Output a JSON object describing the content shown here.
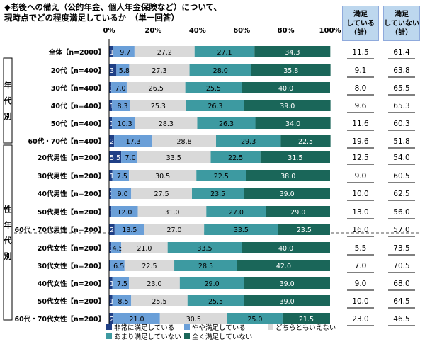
{
  "title": {
    "line1": "◆老後への備え（公的年金、個人年金保険など）について、",
    "line2": "現時点でどの程度満足しているか　（単一回答）"
  },
  "summary_headers": {
    "satisfied": [
      "満足",
      "している",
      "（計）"
    ],
    "unsatisfied": [
      "満足",
      "していない",
      "（計）"
    ]
  },
  "group_labels": {
    "age": "年代別",
    "gender_age": "性年代別"
  },
  "colors": {
    "very_satisfied": "#1f3f86",
    "somewhat_satisfied": "#6a9fd8",
    "neutral": "#d9d9d9",
    "somewhat_unsatisfied": "#3d9aa1",
    "very_unsatisfied": "#1a6659",
    "header_bg": "#bdd7ee"
  },
  "chart_data": {
    "type": "bar",
    "orientation": "horizontal",
    "stacked": "percent",
    "axis_ticks": [
      "0%",
      "20%",
      "40%",
      "60%",
      "80%",
      "100%"
    ],
    "xlim": [
      0,
      100
    ],
    "legend_position": "bottom",
    "series": [
      {
        "name": "非常に満足している",
        "values": [
          1.8,
          3.3,
          1.0,
          1.3,
          1.3,
          2.3,
          5.5,
          1.5,
          1.0,
          1.0,
          2.5,
          1.0,
          0.5,
          1.5,
          1.5,
          2.0
        ]
      },
      {
        "name": "やや満足している",
        "values": [
          9.7,
          5.8,
          7.0,
          8.3,
          10.3,
          17.3,
          7.0,
          7.5,
          9.0,
          12.0,
          13.5,
          4.5,
          6.5,
          7.5,
          8.5,
          21.0
        ]
      },
      {
        "name": "どちらともいえない",
        "values": [
          27.2,
          27.3,
          26.5,
          25.3,
          28.3,
          28.8,
          33.5,
          30.5,
          27.5,
          31.0,
          27.0,
          21.0,
          22.5,
          23.0,
          25.5,
          30.5
        ]
      },
      {
        "name": "あまり満足していない",
        "values": [
          27.1,
          28.0,
          25.5,
          26.3,
          26.3,
          29.3,
          22.5,
          22.5,
          23.5,
          27.0,
          33.5,
          33.5,
          28.5,
          29.0,
          25.5,
          25.0
        ]
      },
      {
        "name": "全く満足していない",
        "values": [
          34.3,
          35.8,
          40.0,
          39.0,
          34.0,
          22.5,
          31.5,
          38.0,
          39.0,
          29.0,
          23.5,
          40.0,
          42.0,
          39.0,
          39.0,
          21.5
        ]
      }
    ],
    "categories": [
      "全体【n=2000】",
      "20代【n=400】",
      "30代【n=400】",
      "40代【n=400】",
      "50代【n=400】",
      "60代・70代【n=400】",
      "20代男性【n=200】",
      "30代男性【n=200】",
      "40代男性【n=200】",
      "50代男性【n=200】",
      "60代・70代男性【n=200】",
      "20代女性【n=200】",
      "30代女性【n=200】",
      "40代女性【n=200】",
      "50代女性【n=200】",
      "60代・70代女性【n=200】"
    ],
    "satisfied_total": [
      "11.5",
      "9.1",
      "8.0",
      "9.6",
      "11.6",
      "19.6",
      "12.5",
      "9.0",
      "10.0",
      "13.0",
      "16.0",
      "5.5",
      "7.0",
      "9.0",
      "10.0",
      "23.0"
    ],
    "unsatisfied_total": [
      "61.4",
      "63.8",
      "65.5",
      "65.3",
      "60.3",
      "51.8",
      "54.0",
      "60.5",
      "62.5",
      "56.0",
      "57.0",
      "73.5",
      "70.5",
      "68.0",
      "64.5",
      "46.5"
    ],
    "value_labels": [
      [
        "1.8",
        "9.7",
        "27.2",
        "27.1",
        "34.3"
      ],
      [
        "3.3",
        "5.8",
        "27.3",
        "28.0",
        "35.8"
      ],
      [
        "1.0",
        "7.0",
        "26.5",
        "25.5",
        "40.0"
      ],
      [
        "1.3",
        "8.3",
        "25.3",
        "26.3",
        "39.0"
      ],
      [
        "1.3",
        "10.3",
        "28.3",
        "26.3",
        "34.0"
      ],
      [
        "2.3",
        "17.3",
        "28.8",
        "29.3",
        "22.5"
      ],
      [
        "5.5",
        "7.0",
        "33.5",
        "22.5",
        "31.5"
      ],
      [
        "1.5",
        "7.5",
        "30.5",
        "22.5",
        "38.0"
      ],
      [
        "1.0",
        "9.0",
        "27.5",
        "23.5",
        "39.0"
      ],
      [
        "1.0",
        "12.0",
        "31.0",
        "27.0",
        "29.0"
      ],
      [
        "2.5",
        "13.5",
        "27.0",
        "33.5",
        "23.5"
      ],
      [
        "1.0",
        "4.5",
        "21.0",
        "33.5",
        "40.0"
      ],
      [
        "0.5",
        "6.5",
        "22.5",
        "28.5",
        "42.0"
      ],
      [
        "1.5",
        "7.5",
        "23.0",
        "29.0",
        "39.0"
      ],
      [
        "1.5",
        "8.5",
        "25.5",
        "25.5",
        "39.0"
      ],
      [
        "2.0",
        "21.0",
        "30.5",
        "25.0",
        "21.5"
      ]
    ]
  }
}
